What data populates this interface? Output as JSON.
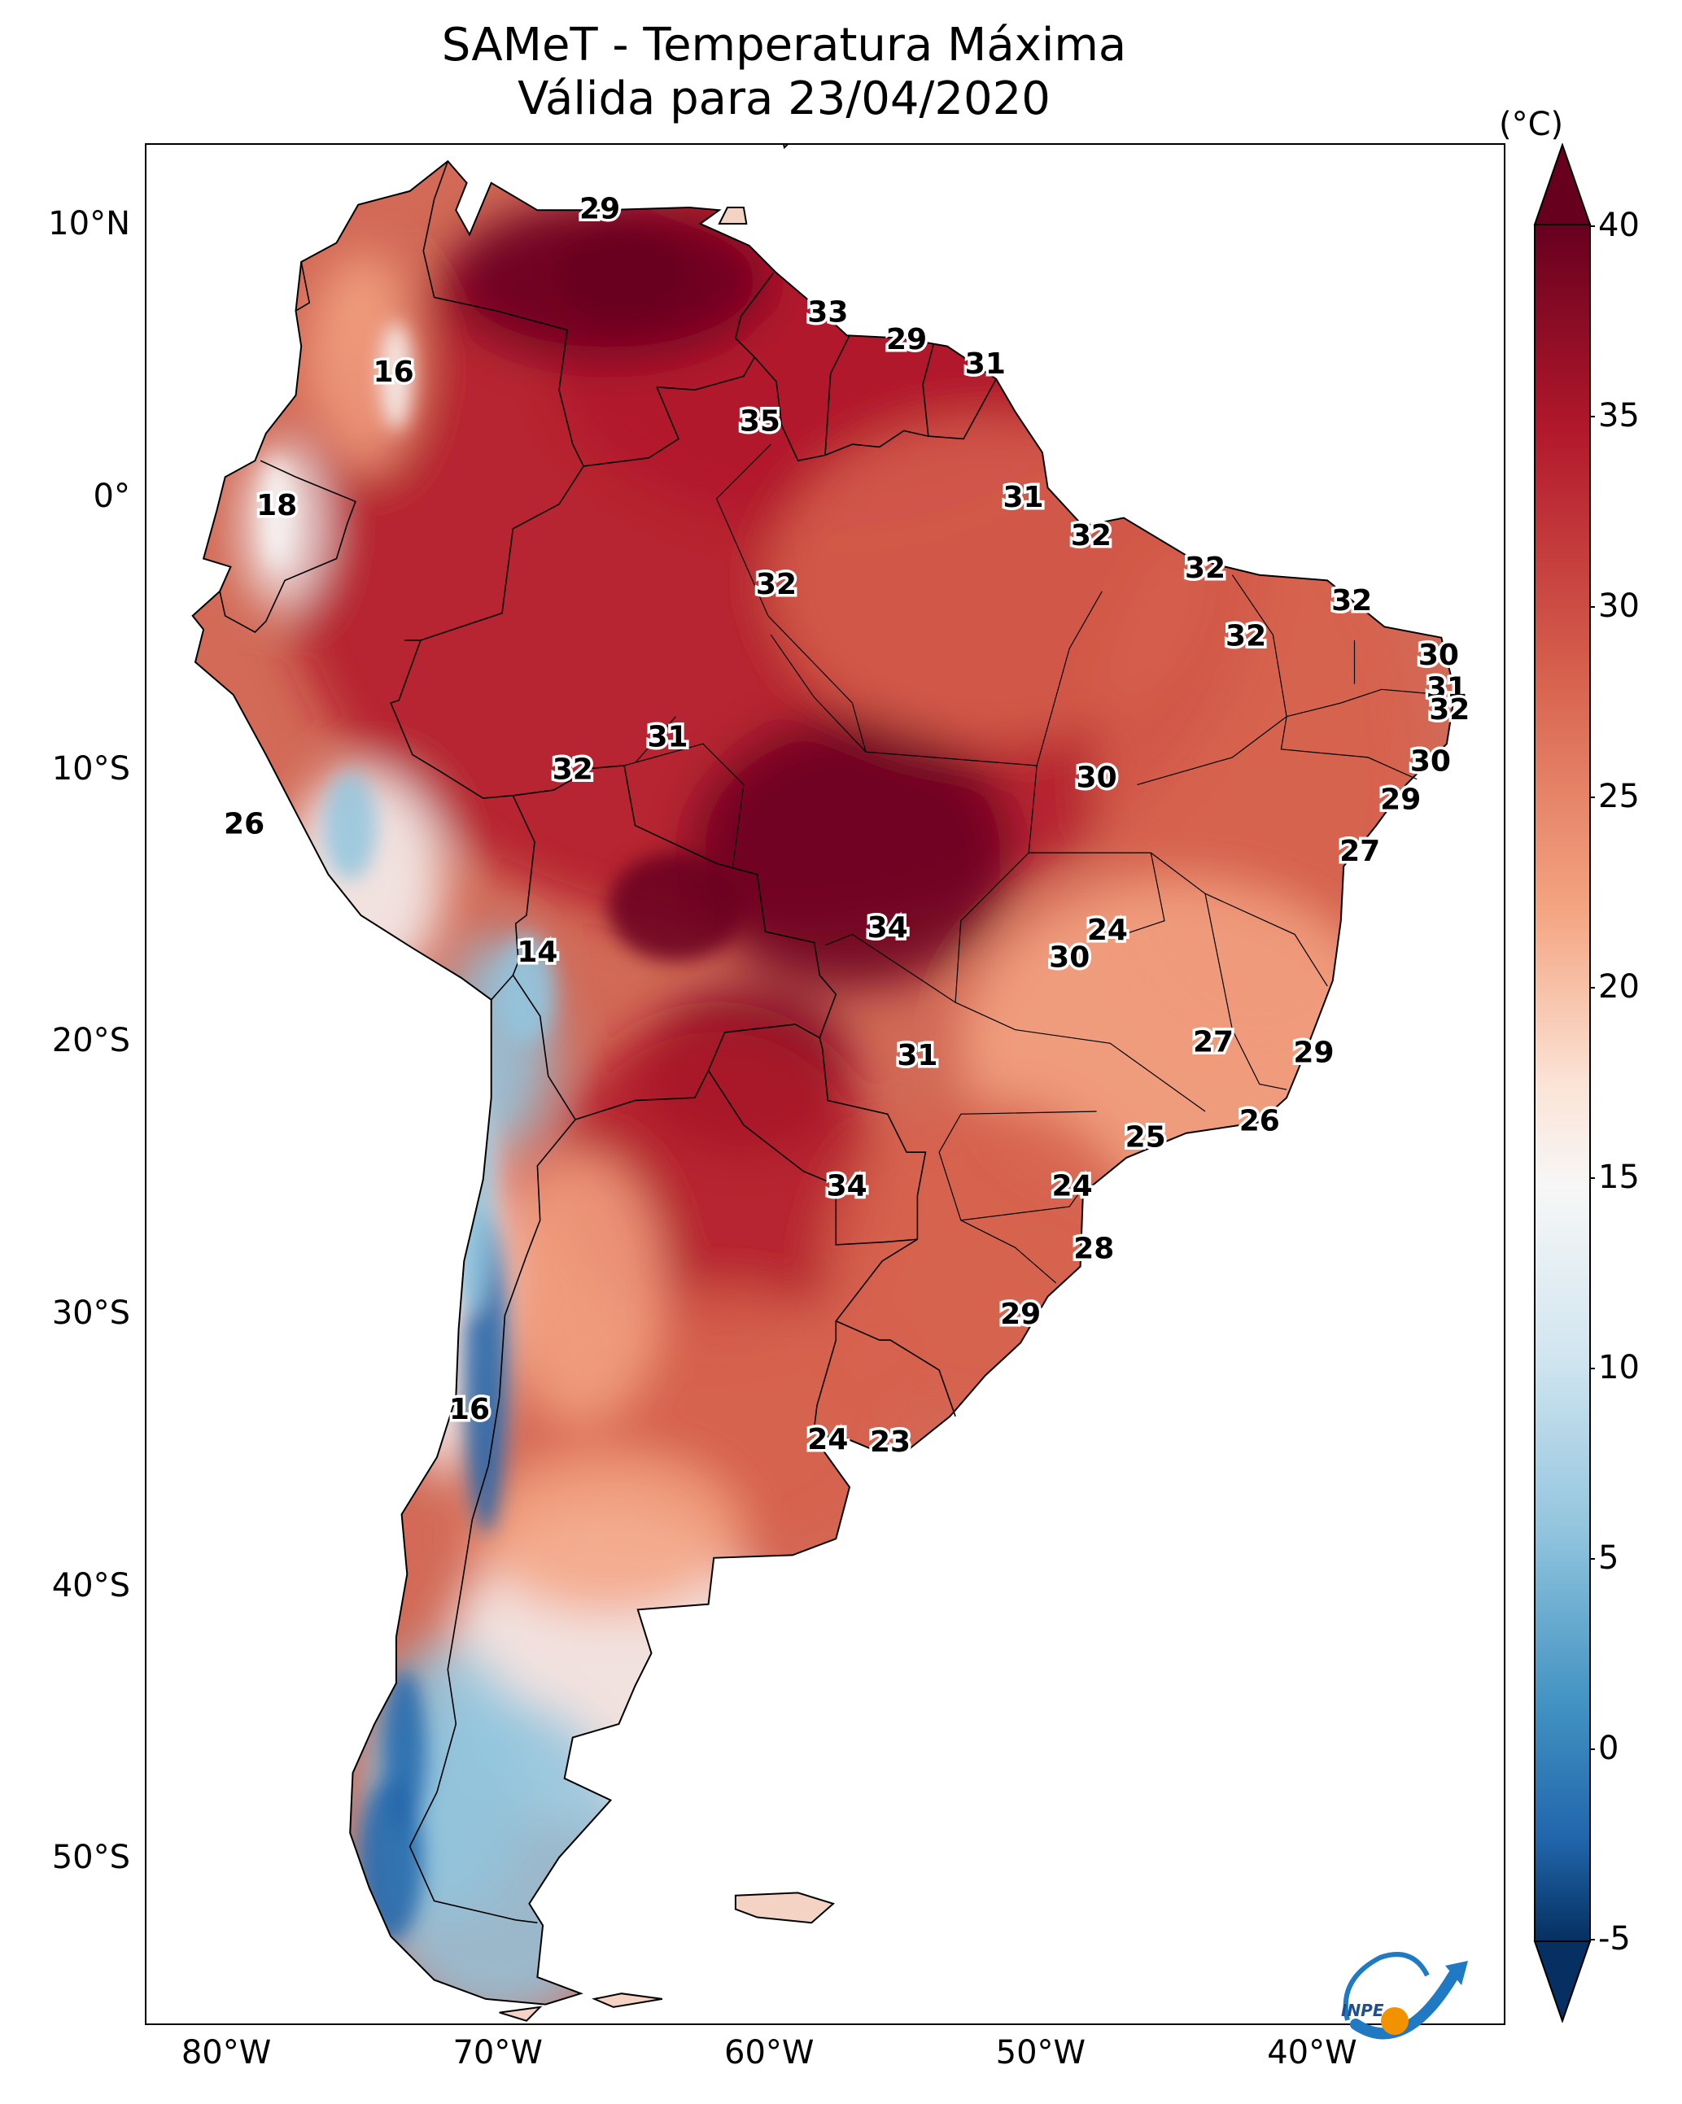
{
  "title": {
    "line1": "SAMeT - Temperatura Máxima",
    "line2": "Válida para 23/04/2020"
  },
  "map": {
    "lon_range": [
      -83,
      -33
    ],
    "lat_range": [
      -56,
      13
    ],
    "lat_ticks": [
      {
        "value": 10,
        "label": "10°N"
      },
      {
        "value": 0,
        "label": "0°"
      },
      {
        "value": -10,
        "label": "10°S"
      },
      {
        "value": -20,
        "label": "20°S"
      },
      {
        "value": -30,
        "label": "30°S"
      },
      {
        "value": -40,
        "label": "40°S"
      },
      {
        "value": -50,
        "label": "50°S"
      }
    ],
    "lon_ticks": [
      {
        "value": -80,
        "label": "80°W"
      },
      {
        "value": -70,
        "label": "70°W"
      },
      {
        "value": -60,
        "label": "60°W"
      },
      {
        "value": -50,
        "label": "50°W"
      },
      {
        "value": -40,
        "label": "40°W"
      }
    ],
    "labels": [
      {
        "lon": -66.3,
        "lat": 10.6,
        "text": "29"
      },
      {
        "lon": -73.9,
        "lat": 4.6,
        "text": "16"
      },
      {
        "lon": -57.9,
        "lat": 6.8,
        "text": "33"
      },
      {
        "lon": -55.0,
        "lat": 5.8,
        "text": "29"
      },
      {
        "lon": -52.1,
        "lat": 4.9,
        "text": "31"
      },
      {
        "lon": -60.4,
        "lat": 2.8,
        "text": "35"
      },
      {
        "lon": -78.2,
        "lat": -0.3,
        "text": "18"
      },
      {
        "lon": -50.7,
        "lat": 0.0,
        "text": "31"
      },
      {
        "lon": -48.2,
        "lat": -1.4,
        "text": "32"
      },
      {
        "lon": -44.0,
        "lat": -2.6,
        "text": "32"
      },
      {
        "lon": -59.8,
        "lat": -3.2,
        "text": "32"
      },
      {
        "lon": -38.6,
        "lat": -3.8,
        "text": "32"
      },
      {
        "lon": -42.5,
        "lat": -5.1,
        "text": "32"
      },
      {
        "lon": -35.4,
        "lat": -5.8,
        "text": "30"
      },
      {
        "lon": -35.1,
        "lat": -7.0,
        "text": "31"
      },
      {
        "lon": -35.0,
        "lat": -7.8,
        "text": "32"
      },
      {
        "lon": -63.8,
        "lat": -8.8,
        "text": "31"
      },
      {
        "lon": -35.7,
        "lat": -9.7,
        "text": "30"
      },
      {
        "lon": -67.3,
        "lat": -10.0,
        "text": "32"
      },
      {
        "lon": -48.0,
        "lat": -10.3,
        "text": "30"
      },
      {
        "lon": -36.8,
        "lat": -11.1,
        "text": "29"
      },
      {
        "lon": -79.4,
        "lat": -12.0,
        "text": "26"
      },
      {
        "lon": -38.3,
        "lat": -13.0,
        "text": "27"
      },
      {
        "lon": -55.7,
        "lat": -15.8,
        "text": "34"
      },
      {
        "lon": -47.6,
        "lat": -15.9,
        "text": "24"
      },
      {
        "lon": -49.0,
        "lat": -16.9,
        "text": "30"
      },
      {
        "lon": -68.6,
        "lat": -16.7,
        "text": "14"
      },
      {
        "lon": -43.7,
        "lat": -20.0,
        "text": "27"
      },
      {
        "lon": -40.0,
        "lat": -20.4,
        "text": "29"
      },
      {
        "lon": -54.6,
        "lat": -20.5,
        "text": "31"
      },
      {
        "lon": -42.0,
        "lat": -22.9,
        "text": "26"
      },
      {
        "lon": -46.2,
        "lat": -23.5,
        "text": "25"
      },
      {
        "lon": -57.2,
        "lat": -25.3,
        "text": "34"
      },
      {
        "lon": -48.9,
        "lat": -25.3,
        "text": "24"
      },
      {
        "lon": -48.1,
        "lat": -27.6,
        "text": "28"
      },
      {
        "lon": -50.8,
        "lat": -30.0,
        "text": "29"
      },
      {
        "lon": -71.1,
        "lat": -33.5,
        "text": "16"
      },
      {
        "lon": -57.9,
        "lat": -34.6,
        "text": "24"
      },
      {
        "lon": -55.6,
        "lat": -34.7,
        "text": "23"
      }
    ]
  },
  "colorbar": {
    "unit": "(°C)",
    "range": [
      -5,
      40
    ],
    "ticks": [
      {
        "value": 40,
        "label": "40"
      },
      {
        "value": 35,
        "label": "35"
      },
      {
        "value": 30,
        "label": "30"
      },
      {
        "value": 25,
        "label": "25"
      },
      {
        "value": 20,
        "label": "20"
      },
      {
        "value": 15,
        "label": "15"
      },
      {
        "value": 10,
        "label": "10"
      },
      {
        "value": 5,
        "label": "5"
      },
      {
        "value": 0,
        "label": "0"
      },
      {
        "value": -5,
        "label": "-5"
      }
    ]
  },
  "logo": {
    "text": "INPE"
  },
  "colors": {
    "hot_dark": "#67001f",
    "hot": "#b2182b",
    "warm": "#d6604d",
    "mild": "#f4a582",
    "neutral": "#f7f7f7",
    "cool": "#92c5de",
    "cold": "#2166ac",
    "cold_dark": "#053061"
  }
}
